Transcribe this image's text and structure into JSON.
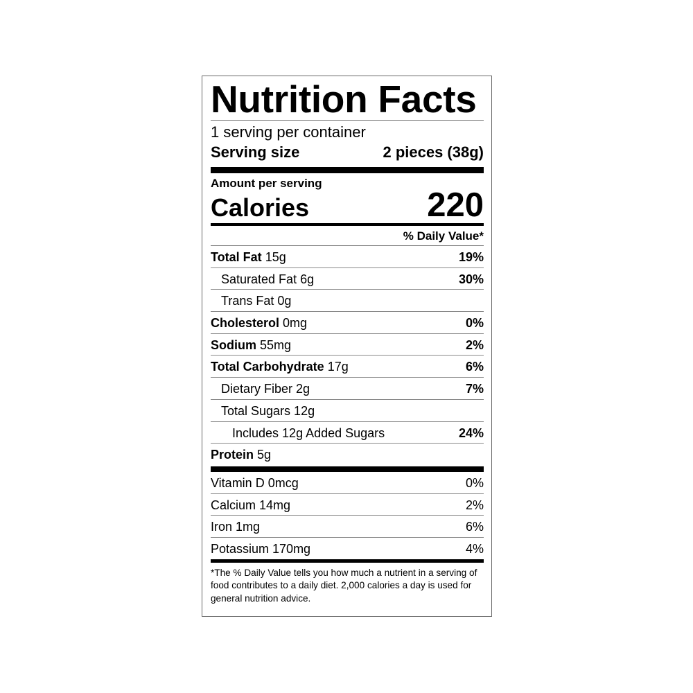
{
  "title": "Nutrition Facts",
  "servings_per_container": "1 serving per container",
  "serving_size": {
    "label": "Serving size",
    "value": "2 pieces (38g)"
  },
  "amount_per_serving": "Amount per serving",
  "calories": {
    "label": "Calories",
    "value": "220"
  },
  "daily_value_header": "% Daily Value*",
  "nutrients": [
    {
      "name": "Total Fat",
      "amount": "15g",
      "dv": "19%"
    },
    {
      "name": "Saturated Fat 6g",
      "amount": "",
      "dv": "30%"
    },
    {
      "name": "Trans Fat 0g",
      "amount": "",
      "dv": ""
    },
    {
      "name": "Cholesterol",
      "amount": "0mg",
      "dv": "0%"
    },
    {
      "name": "Sodium",
      "amount": "55mg",
      "dv": "2%"
    },
    {
      "name": "Total Carbohydrate",
      "amount": "17g",
      "dv": "6%"
    },
    {
      "name": "Dietary Fiber 2g",
      "amount": "",
      "dv": "7%"
    },
    {
      "name": "Total Sugars 12g",
      "amount": "",
      "dv": ""
    },
    {
      "name": "Includes 12g Added Sugars",
      "amount": "",
      "dv": "24%"
    },
    {
      "name": "Protein",
      "amount": "5g",
      "dv": ""
    }
  ],
  "vitamins": [
    {
      "name": "Vitamin D 0mcg",
      "dv": "0%"
    },
    {
      "name": "Calcium 14mg",
      "dv": "2%"
    },
    {
      "name": "Iron 1mg",
      "dv": "6%"
    },
    {
      "name": "Potassium 170mg",
      "dv": "4%"
    }
  ],
  "footnote": "*The % Daily Value tells you how much a nutrient in a serving of food contributes to a daily diet. 2,000 calories a day is used for general nutrition advice."
}
